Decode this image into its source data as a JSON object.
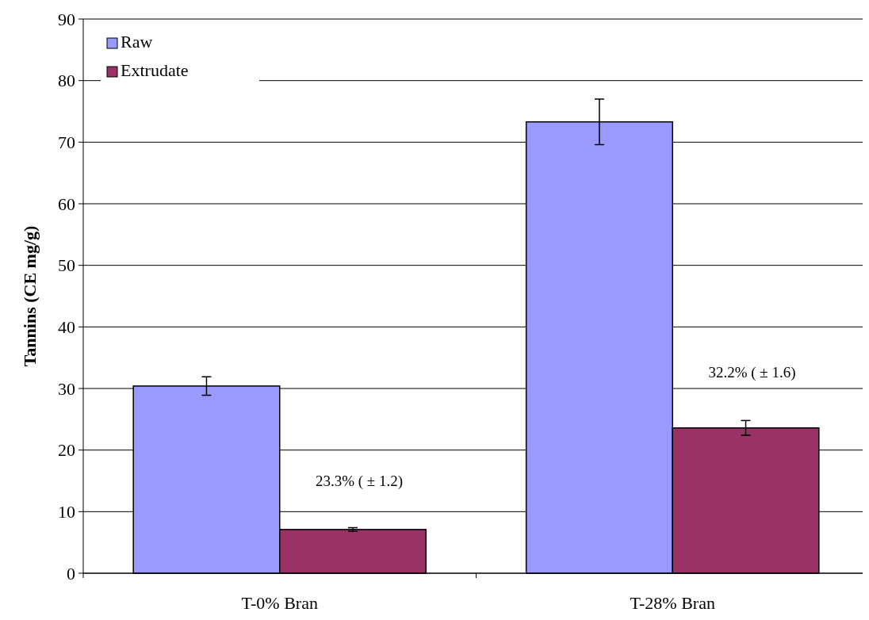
{
  "chart_data": {
    "type": "bar",
    "ylabel": "Tannins (CE mg/g)",
    "categories": [
      "T-0% Bran",
      "T-28% Bran"
    ],
    "series": [
      {
        "name": "Raw",
        "color": "#9999ff",
        "values": [
          30.4,
          73.3
        ],
        "errors": [
          1.5,
          3.7
        ]
      },
      {
        "name": "Extrudate",
        "color": "#993366",
        "values": [
          7.1,
          23.6
        ],
        "errors": [
          0.3,
          1.2
        ]
      }
    ],
    "ylim": [
      0,
      90
    ],
    "yticks": [
      0,
      10,
      20,
      30,
      40,
      50,
      60,
      70,
      80,
      90
    ],
    "grid": "y",
    "legend": "top left",
    "annotations": [
      {
        "text": "23.3% ( ± 1.2)",
        "x": "T-0% Bran",
        "y": 15
      },
      {
        "text": "32.2% ( ± 1.6)",
        "x": "T-28% Bran",
        "y": 32.7
      }
    ]
  }
}
